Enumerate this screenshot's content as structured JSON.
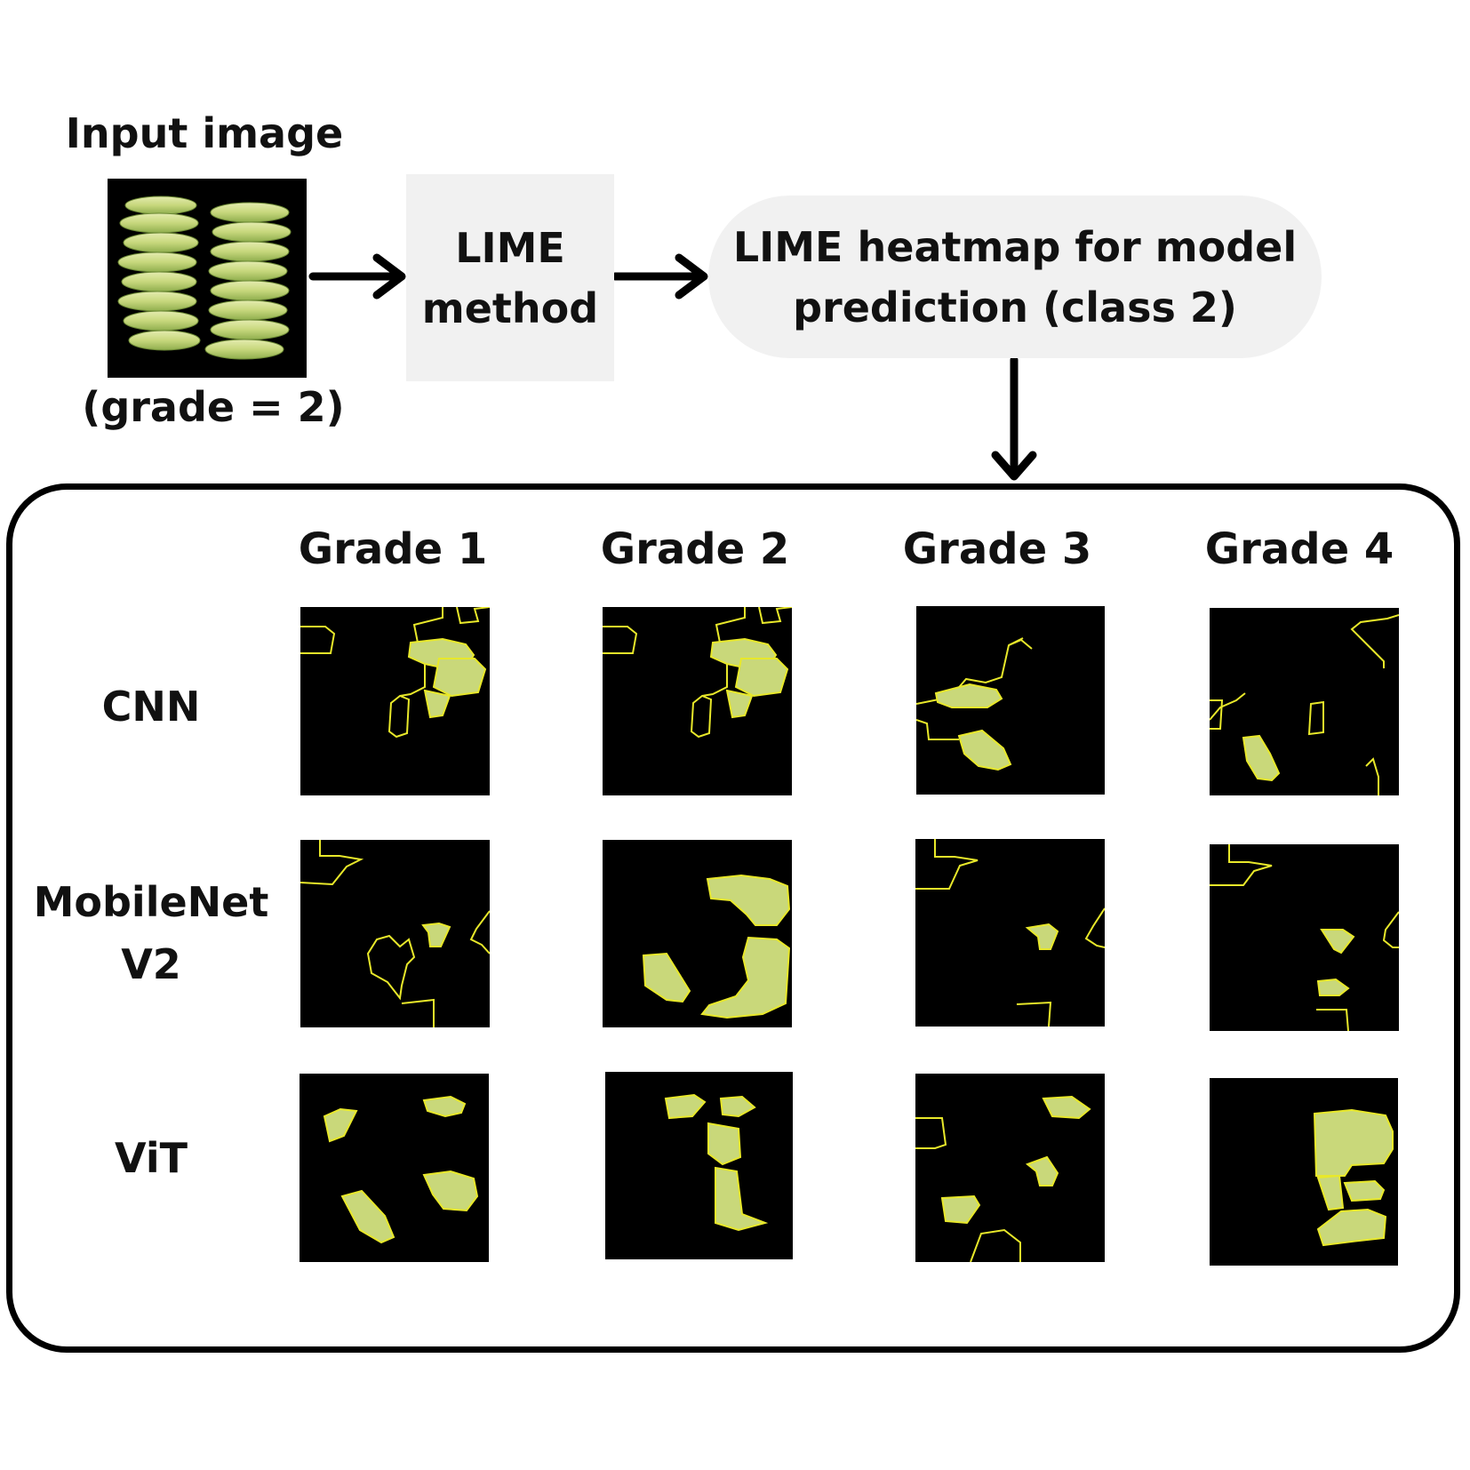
{
  "input": {
    "title": "Input image",
    "caption": "(grade = 2)"
  },
  "method": {
    "label": "LIME\nmethod"
  },
  "heatmap": {
    "label": "LIME heatmap for model\nprediction (class 2)"
  },
  "grid": {
    "columns": [
      "Grade 1",
      "Grade 2",
      "Grade 3",
      "Grade 4"
    ],
    "rows": [
      "CNN",
      "MobileNet\nV2",
      "ViT"
    ]
  },
  "colors": {
    "banana": "#c9d87a",
    "outline": "#e8e82a",
    "panel_bg": "#000000",
    "box_bg": "#f1f1f1"
  }
}
